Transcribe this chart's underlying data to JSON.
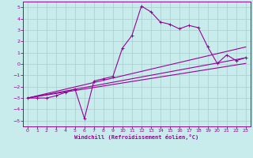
{
  "xlabel": "Windchill (Refroidissement éolien,°C)",
  "bg_color": "#c8ecec",
  "line_color": "#990099",
  "grid_color": "#aacccc",
  "xlim": [
    -0.5,
    23.5
  ],
  "ylim": [
    -5.5,
    5.5
  ],
  "xticks": [
    0,
    1,
    2,
    3,
    4,
    5,
    6,
    7,
    8,
    9,
    10,
    11,
    12,
    13,
    14,
    15,
    16,
    17,
    18,
    19,
    20,
    21,
    22,
    23
  ],
  "yticks": [
    -5,
    -4,
    -3,
    -2,
    -1,
    0,
    1,
    2,
    3,
    4,
    5
  ],
  "series1_x": [
    0,
    1,
    2,
    3,
    4,
    5,
    6,
    7,
    8,
    9,
    10,
    11,
    12,
    13,
    14,
    15,
    16,
    17,
    18,
    19,
    20,
    21,
    22,
    23
  ],
  "series1_y": [
    -3,
    -3,
    -3,
    -2.8,
    -2.5,
    -2.2,
    -4.8,
    -1.5,
    -1.3,
    -1.1,
    1.4,
    2.5,
    5.1,
    4.6,
    3.7,
    3.5,
    3.1,
    3.4,
    3.2,
    1.5,
    0.05,
    0.8,
    0.3,
    0.55
  ],
  "series2_x": [
    0,
    23
  ],
  "series2_y": [
    -3,
    1.5
  ],
  "series3_x": [
    0,
    23
  ],
  "series3_y": [
    -3,
    0.55
  ],
  "series4_x": [
    0,
    23
  ],
  "series4_y": [
    -3,
    0.05
  ]
}
